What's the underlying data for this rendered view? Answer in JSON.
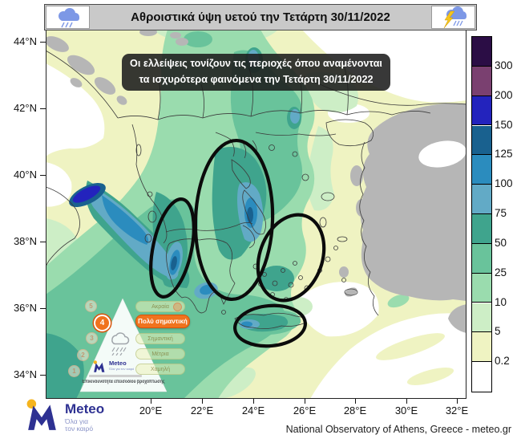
{
  "header": {
    "title": "Αθροιστικά ύψη υετού την Τετάρτη 30/11/2022",
    "left_icon": "rain-cloud",
    "right_icon": "storm-cloud"
  },
  "annotation": {
    "line1": "Οι ελλείψεις τονίζουν τις περιοχές όπου αναμένονται",
    "line2": "τα ισχυρότερα φαινόμενα την Τετάρτη 30/11/2022"
  },
  "axes": {
    "lat_labels": [
      "44°N",
      "42°N",
      "40°N",
      "38°N",
      "36°N",
      "34°N"
    ],
    "lon_labels": [
      "20°E",
      "22°E",
      "24°E",
      "26°E",
      "28°E",
      "30°E",
      "32°E"
    ]
  },
  "colorbar": {
    "boundary_labels": [
      "300",
      "200",
      "150",
      "125",
      "100",
      "75",
      "50",
      "25",
      "10",
      "5",
      "0.2"
    ],
    "colors": [
      "#2b0d45",
      "#7a4070",
      "#2323bd",
      "#19618f",
      "#2b8cbe",
      "#62aac6",
      "#3fa48d",
      "#69c39b",
      "#9adcae",
      "#cdeec6",
      "#eff3c2",
      "#ffffff"
    ]
  },
  "severity_legend": {
    "caption": "Επικινδυνότητα επεισοδίου βροχόπτωσης",
    "active_color": "#f0731e",
    "levels": [
      {
        "num": "5",
        "label": "Ακραία",
        "active": false
      },
      {
        "num": "4",
        "label": "Πολύ σημαντική",
        "active": true
      },
      {
        "num": "3",
        "label": "Σημαντική",
        "active": false
      },
      {
        "num": "2",
        "label": "Μέτρια",
        "active": false
      },
      {
        "num": "1",
        "label": "Χαμηλή",
        "active": false
      }
    ]
  },
  "pyramid_logo": {
    "name": "Meteo",
    "tagline": "Όλα για τον καιρό"
  },
  "footer": {
    "logo_name": "Meteo",
    "logo_tagline_line1": "Όλα για",
    "logo_tagline_line2": "τον καιρό",
    "credit": "National Observatory of Athens, Greece - meteo.gr"
  }
}
